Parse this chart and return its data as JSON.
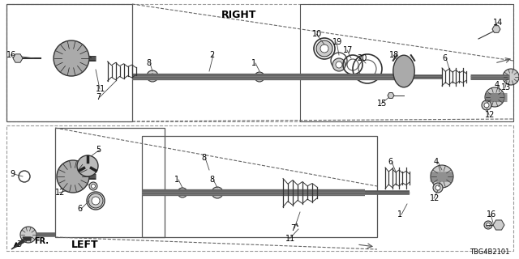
{
  "bg": "#ffffff",
  "diagram_number": "TBG4B2101",
  "right_label": "RIGHT",
  "left_label": "LEFT",
  "fr_label": "FR.",
  "label_fs": 7,
  "bold_fs": 8
}
